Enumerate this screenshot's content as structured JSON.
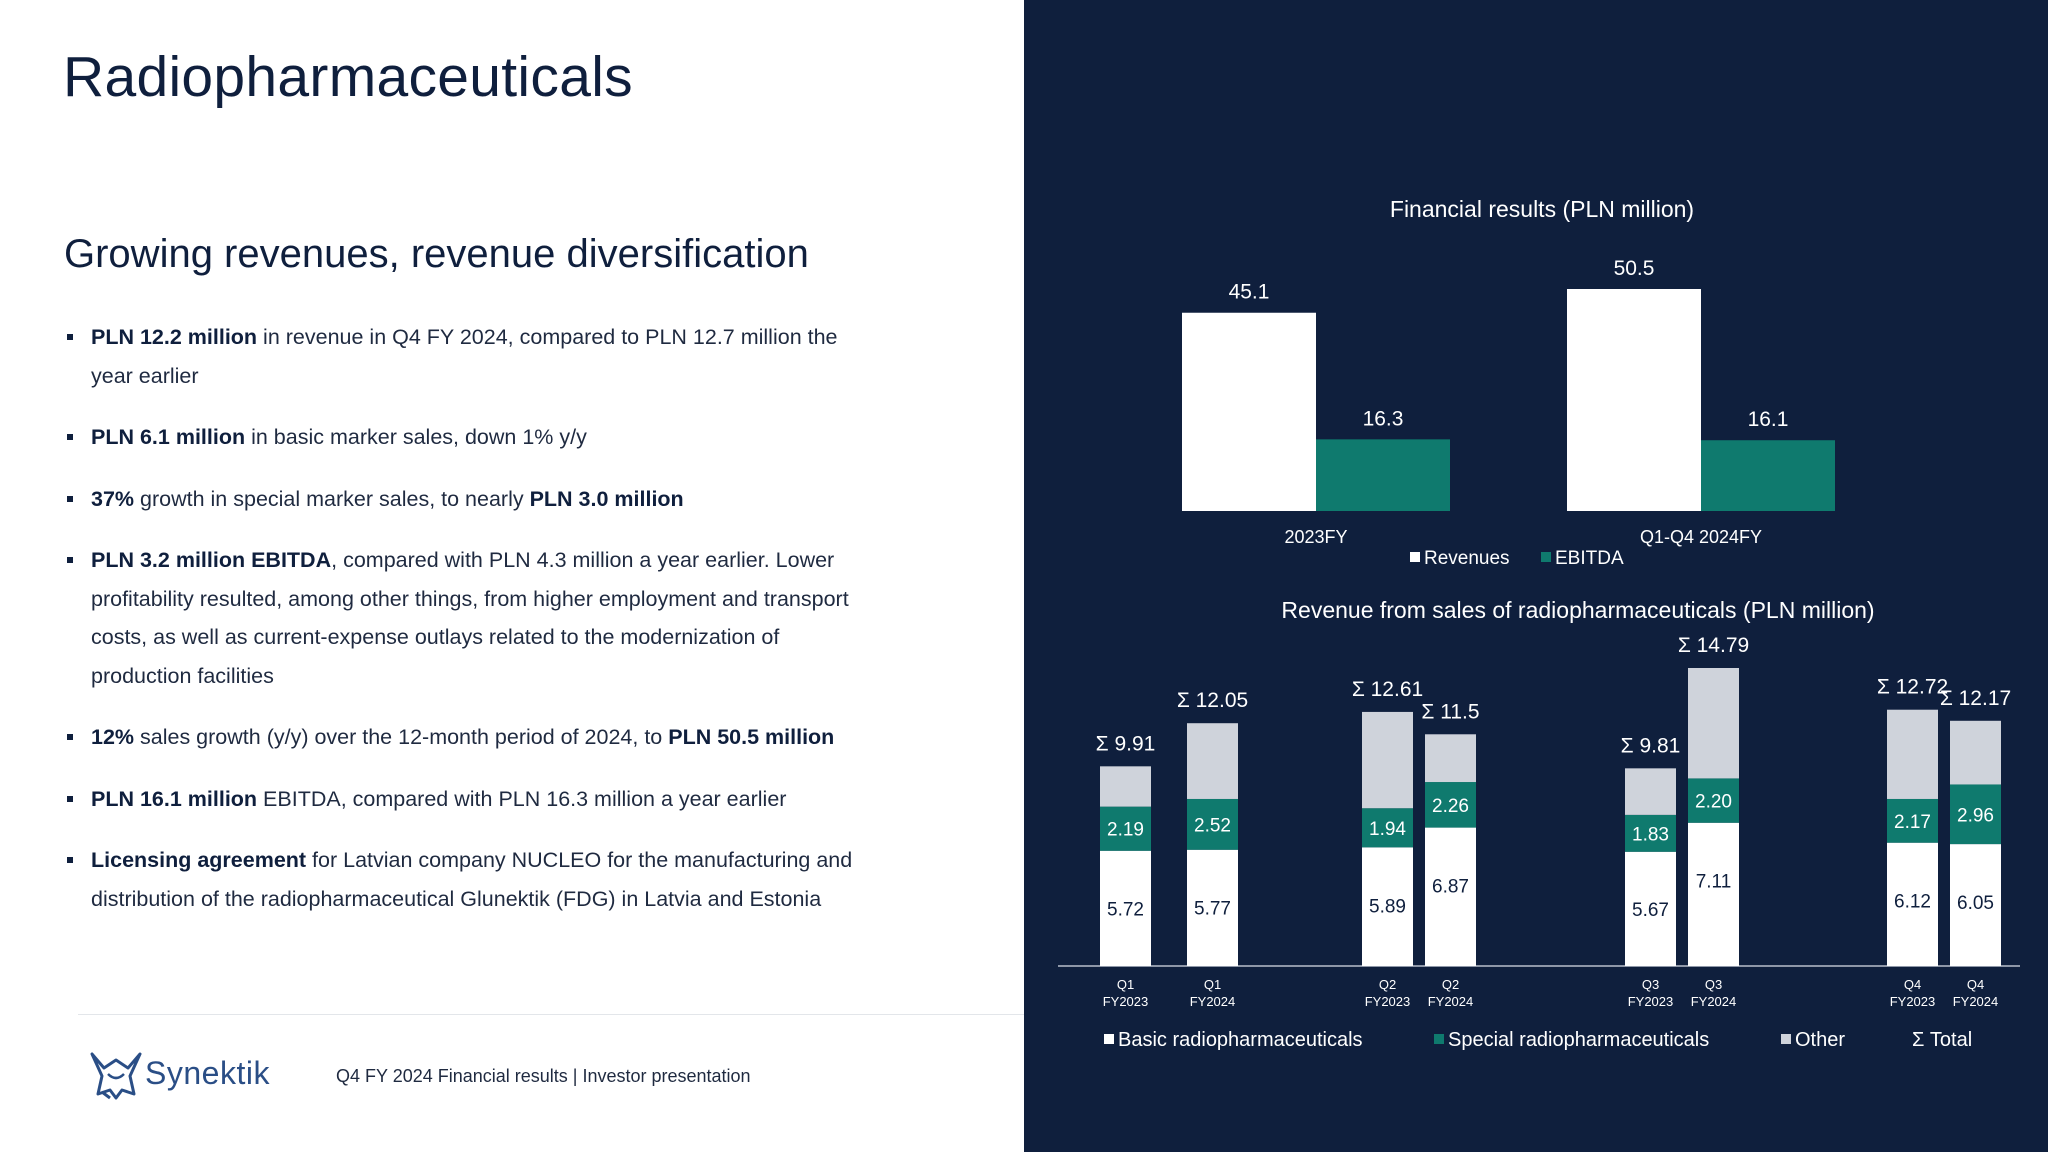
{
  "page": {
    "title": "Radiopharmaceuticals",
    "subtitle": "Growing revenues, revenue diversification",
    "bullets": [
      {
        "bold": "PLN 12.2 million",
        "text": " in revenue in Q4 FY 2024, compared to PLN 12.7 million the year earlier"
      },
      {
        "bold": "PLN 6.1 million",
        "text": " in basic marker sales, down 1% y/y"
      },
      {
        "bold": "37%",
        "text": " growth in special marker sales, to nearly ",
        "bold2": "PLN 3.0 million"
      },
      {
        "bold": "PLN 3.2 million EBITDA",
        "text": ", compared with PLN 4.3 million a year earlier. Lower profitability resulted, among other things, from higher employment and transport costs, as well as current-expense outlays related to the modernization of production facilities"
      },
      {
        "bold": "12%",
        "text": " sales growth (y/y) over the 12-month period of 2024, to ",
        "bold2": "PLN 50.5 million"
      },
      {
        "bold": "PLN 16.1 million",
        "text": " EBITDA, compared with PLN 16.3 million a year earlier"
      },
      {
        "bold": "Licensing agreement",
        "text": " for Latvian company NUCLEO for the manufacturing and distribution of the radiopharmaceutical Glunektik (FDG) in Latvia and Estonia"
      }
    ],
    "logo_text": "Synektik",
    "footer": "Q4 FY 2024 Financial results |  Investor presentation"
  },
  "chart_data": [
    {
      "type": "bar",
      "title": "Financial results (PLN million)",
      "categories": [
        "2023FY",
        "Q1-Q4  2024FY"
      ],
      "series": [
        {
          "name": "Revenues",
          "values": [
            45.1,
            50.5
          ],
          "color": "#ffffff"
        },
        {
          "name": "EBITDA",
          "values": [
            16.3,
            16.1
          ],
          "color": "#0f7a6e"
        }
      ],
      "legend_position": "bottom",
      "grid": false
    },
    {
      "type": "bar",
      "stacked": true,
      "title": "Revenue from sales of radiopharmaceuticals (PLN million)",
      "categories": [
        "Q1\nFY2023",
        "Q1\nFY2024",
        "Q2\nFY2023",
        "Q2\nFY2024",
        "Q3\nFY2023",
        "Q3\nFY2024",
        "Q4\nFY2023",
        "Q4\nFY2024"
      ],
      "series": [
        {
          "name": "Basic radiopharmaceuticals",
          "values": [
            5.72,
            5.77,
            5.89,
            6.87,
            5.67,
            7.11,
            6.12,
            6.05
          ],
          "color": "#ffffff"
        },
        {
          "name": "Special radiopharmaceuticals",
          "values": [
            2.19,
            2.52,
            1.94,
            2.26,
            1.83,
            2.2,
            2.17,
            2.96
          ],
          "color": "#0f7a6e"
        },
        {
          "name": "Other",
          "values": [
            2.0,
            3.76,
            4.78,
            2.37,
            2.31,
            5.48,
            4.43,
            3.16
          ],
          "color": "#cfd3db"
        }
      ],
      "totals_label": "Σ Total",
      "totals": [
        "9.91",
        "12.05",
        "12.61",
        "11.5",
        "9.81",
        "14.79",
        "12.72",
        "12.17"
      ],
      "legend_position": "bottom",
      "grid": false
    }
  ]
}
